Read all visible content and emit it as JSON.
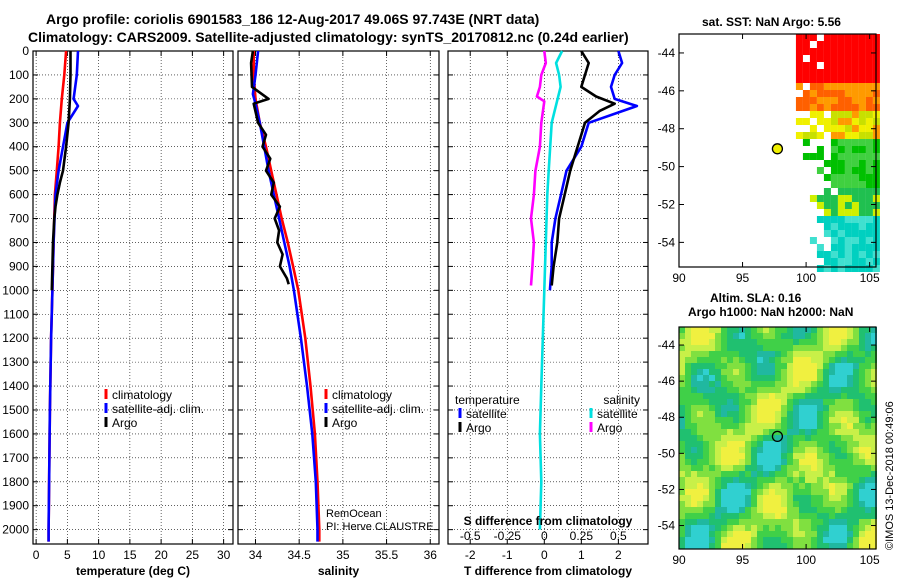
{
  "header": {
    "title_line1": "Argo profile: coriolis 6901583_186 12-Aug-2017 49.06S 97.743E (NRT data)",
    "title_line2": "Climatology: CARS2009. Satellite-adjusted climatology: synTS_20170812.nc (0.24d earlier)"
  },
  "colors": {
    "climatology": "#ff0000",
    "satellite": "#0000ff",
    "argo": "#000000",
    "sal_satellite": "#00e0e0",
    "sal_argo": "#ff00ff"
  },
  "right_panels": {
    "sst_title": "sat. SST: NaN Argo: 5.56",
    "sla_title1": "Altim. SLA: 0.16",
    "sla_title2": "Argo h1000: NaN h2000: NaN",
    "credit": "©IMOS 13-Dec-2018 00:49:06",
    "lat_ticks": [
      "-44",
      "-46",
      "-48",
      "-50",
      "-52",
      "-54"
    ],
    "lon_ticks": [
      "90",
      "95",
      "100",
      "105"
    ],
    "argo_position": {
      "lon": 97.743,
      "lat": -49.06
    }
  },
  "chart_data": [
    {
      "type": "line",
      "title": "",
      "xlabel": "temperature (deg C)",
      "ylabel": "",
      "xlim": [
        -0.5,
        31.5
      ],
      "ylim": [
        2060,
        0
      ],
      "xticks": [
        "0",
        "5",
        "10",
        "15",
        "20",
        "25",
        "30"
      ],
      "yticks": [
        "0",
        "100",
        "200",
        "300",
        "400",
        "500",
        "600",
        "700",
        "800",
        "900",
        "1000",
        "1100",
        "1200",
        "1300",
        "1400",
        "1500",
        "1600",
        "1700",
        "1800",
        "1900",
        "2000"
      ],
      "legend": [
        "climatology",
        "satellite-adj. clim.",
        "Argo"
      ],
      "series": [
        {
          "name": "climatology",
          "depth": [
            0,
            100,
            200,
            300,
            400,
            500,
            600,
            800,
            1000,
            1200,
            1500,
            2000,
            2050
          ],
          "values": [
            4.8,
            4.5,
            4.1,
            3.8,
            3.6,
            3.3,
            3.0,
            2.8,
            2.6,
            2.4,
            2.2,
            2.0,
            2.0
          ]
        },
        {
          "name": "satellite-adj. clim.",
          "depth": [
            0,
            100,
            200,
            230,
            300,
            400,
            500,
            600,
            800,
            1000,
            1200,
            1500,
            2000,
            2050
          ],
          "values": [
            6.7,
            6.5,
            6.0,
            6.7,
            5.0,
            4.3,
            3.6,
            3.1,
            2.8,
            2.6,
            2.4,
            2.2,
            2.0,
            2.0
          ]
        },
        {
          "name": "Argo",
          "depth": [
            0,
            100,
            200,
            300,
            400,
            500,
            550,
            600,
            650,
            700,
            800,
            900,
            1000
          ],
          "values": [
            5.5,
            5.5,
            5.4,
            5.2,
            4.8,
            4.3,
            3.8,
            3.4,
            3.1,
            2.9,
            2.7,
            2.6,
            2.5
          ]
        }
      ]
    },
    {
      "type": "line",
      "title": "",
      "xlabel": "salinity",
      "ylabel": "",
      "xlim": [
        33.8,
        36.1
      ],
      "ylim": [
        2060,
        0
      ],
      "xticks": [
        "34",
        "34.5",
        "35",
        "35.5",
        "36"
      ],
      "legend": [
        "climatology",
        "satellite-adj. clim.",
        "Argo"
      ],
      "annotation1": "RemOcean",
      "annotation2": "PI: Herve CLAUSTRE",
      "series": [
        {
          "name": "climatology",
          "depth": [
            0,
            100,
            200,
            300,
            400,
            500,
            600,
            700,
            800,
            900,
            1000,
            1200,
            1400,
            1600,
            1800,
            2000,
            2050
          ],
          "values": [
            33.98,
            33.98,
            34.0,
            34.05,
            34.12,
            34.18,
            34.24,
            34.3,
            34.37,
            34.43,
            34.49,
            34.57,
            34.63,
            34.68,
            34.71,
            34.73,
            34.73
          ]
        },
        {
          "name": "satellite-adj. clim.",
          "depth": [
            0,
            100,
            180,
            220,
            300,
            400,
            500,
            600,
            700,
            800,
            900,
            1000,
            1200,
            1400,
            1600,
            1800,
            2000,
            2050
          ],
          "values": [
            34.03,
            34.0,
            33.97,
            34.0,
            34.05,
            34.1,
            34.15,
            34.21,
            34.27,
            34.33,
            34.39,
            34.44,
            34.52,
            34.59,
            34.65,
            34.69,
            34.71,
            34.71
          ]
        },
        {
          "name": "Argo",
          "depth": [
            0,
            50,
            150,
            200,
            220,
            300,
            350,
            400,
            450,
            500,
            550,
            600,
            650,
            700,
            750,
            800,
            850,
            900,
            950,
            975
          ],
          "values": [
            33.97,
            33.95,
            33.96,
            34.15,
            33.98,
            34.03,
            34.12,
            34.08,
            34.17,
            34.12,
            34.21,
            34.18,
            34.28,
            34.22,
            34.27,
            34.25,
            34.31,
            34.28,
            34.36,
            34.38
          ]
        }
      ]
    },
    {
      "type": "line",
      "title": "",
      "xlabel": "T difference from climatology",
      "ylabel": "",
      "xlim": [
        -2.6,
        2.8
      ],
      "ylim": [
        2060,
        0
      ],
      "xticks": [
        "-2",
        "-1",
        "0",
        "1",
        "2"
      ],
      "top_xlabel": "S difference from climatology",
      "top_xticks": [
        "-0.5",
        "-0.25",
        "0",
        "0.25",
        "0.5"
      ],
      "top_xlim": [
        -0.65,
        0.7
      ],
      "legend_temperature_title": "temperature",
      "legend_salinity_title": "salinity",
      "legend_temperature": [
        "satellite",
        "Argo"
      ],
      "legend_salinity": [
        "satellite",
        "Argo"
      ],
      "series": [
        {
          "name": "T satellite",
          "depth": [
            0,
            50,
            100,
            150,
            200,
            230,
            300,
            400,
            500,
            600,
            700,
            800,
            900,
            1000
          ],
          "values": [
            2.0,
            2.1,
            1.9,
            1.8,
            1.9,
            2.5,
            1.2,
            1.0,
            0.6,
            0.45,
            0.3,
            0.2,
            0.2,
            0.15
          ]
        },
        {
          "name": "T Argo",
          "depth": [
            0,
            50,
            100,
            150,
            190,
            220,
            250,
            300,
            400,
            500,
            600,
            700,
            800,
            900,
            980
          ],
          "values": [
            1.0,
            1.2,
            1.1,
            1.0,
            1.4,
            1.9,
            1.5,
            1.1,
            0.9,
            0.7,
            0.55,
            0.4,
            0.35,
            0.25,
            0.2
          ]
        },
        {
          "name": "S satellite",
          "depth": [
            0,
            50,
            100,
            150,
            200,
            300,
            400,
            500,
            600,
            800,
            1000,
            1200,
            1400,
            1600,
            1800,
            2000
          ],
          "values": [
            0.12,
            0.08,
            0.1,
            0.11,
            0.09,
            0.05,
            0.04,
            0.03,
            0.02,
            0.01,
            0.0,
            -0.01,
            -0.02,
            -0.03,
            -0.02,
            -0.03
          ]
        },
        {
          "name": "S Argo",
          "depth": [
            0,
            50,
            100,
            150,
            190,
            210,
            300,
            400,
            500,
            600,
            700,
            800,
            900,
            980
          ],
          "values": [
            0.0,
            0.01,
            -0.02,
            -0.03,
            -0.05,
            0.0,
            -0.02,
            -0.03,
            -0.06,
            -0.07,
            -0.09,
            -0.07,
            -0.08,
            -0.09
          ]
        }
      ]
    }
  ]
}
